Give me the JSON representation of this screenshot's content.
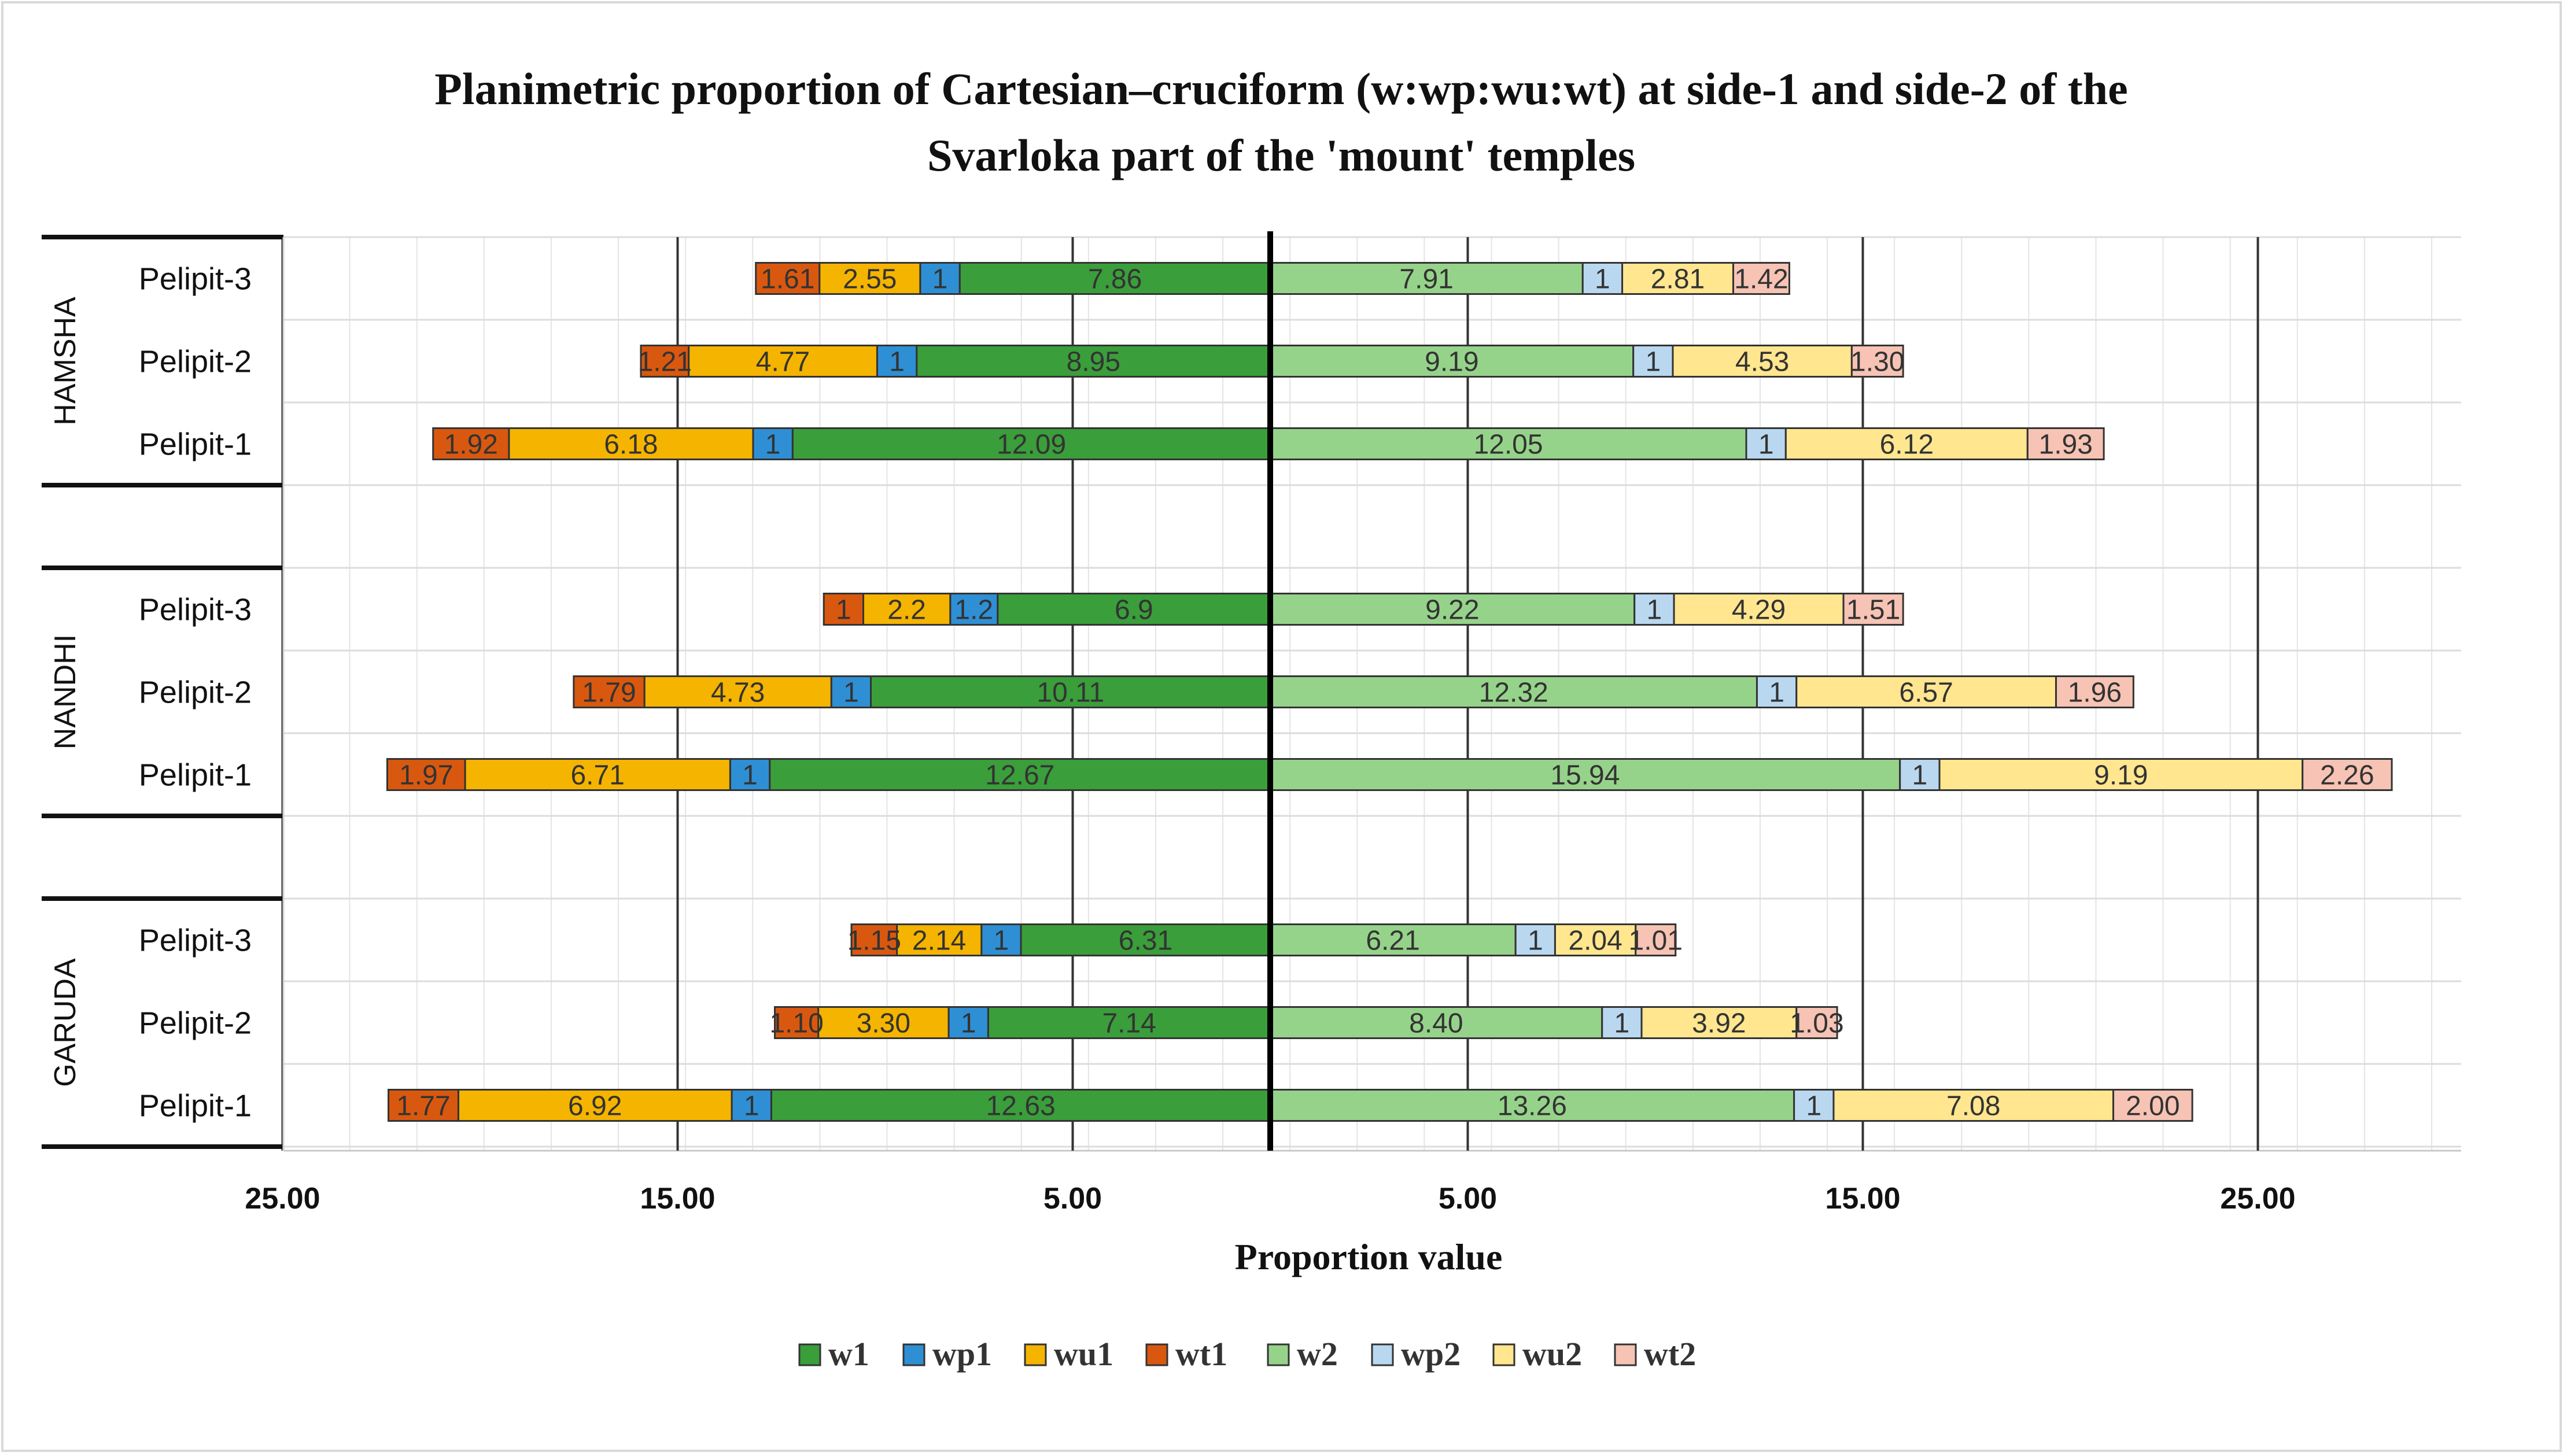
{
  "chart_data": {
    "type": "bar",
    "orientation": "horizontal-diverging",
    "title": "Planimetric proportion of Cartesian–cruciform (w:wp:wu:wt) at side-1 and side-2 of the Svarloka part of the 'mount' temples",
    "title_lines": [
      "Planimetric proportion of Cartesian–cruciform (w:wp:wu:wt) at side-1 and side-2 of the",
      "Svarloka part of the 'mount' temples"
    ],
    "xlabel": "Proportion value",
    "ylabel": "",
    "xlim": [
      -25,
      30
    ],
    "x_ticks": [
      -25,
      -15,
      -5,
      5,
      15,
      25
    ],
    "x_tick_labels": [
      "25.00",
      "15.00",
      "5.00",
      "5.00",
      "15.00",
      "25.00"
    ],
    "legend_position": "bottom-center",
    "groups": [
      {
        "name": "HAMSHA",
        "rows": [
          {
            "label": "Pelipit-3",
            "side1": {
              "w1": 7.86,
              "wp1": 1,
              "wu1": 2.55,
              "wt1": 1.61
            },
            "side2": {
              "w2": 7.91,
              "wp2": 1,
              "wu2": 2.81,
              "wt2": 1.42
            },
            "side1_labels": [
              "7.86",
              "1",
              "2.55",
              "1.61"
            ],
            "side2_labels": [
              "7.91",
              "1",
              "2.81",
              "1.42"
            ]
          },
          {
            "label": "Pelipit-2",
            "side1": {
              "w1": 8.95,
              "wp1": 1,
              "wu1": 4.77,
              "wt1": 1.21
            },
            "side2": {
              "w2": 9.19,
              "wp2": 1,
              "wu2": 4.53,
              "wt2": 1.3
            },
            "side1_labels": [
              "8.95",
              "1",
              "4.77",
              "1.21"
            ],
            "side2_labels": [
              "9.19",
              "1",
              "4.53",
              "1.30"
            ]
          },
          {
            "label": "Pelipit-1",
            "side1": {
              "w1": 12.09,
              "wp1": 1,
              "wu1": 6.18,
              "wt1": 1.92
            },
            "side2": {
              "w2": 12.05,
              "wp2": 1,
              "wu2": 6.12,
              "wt2": 1.93
            },
            "side1_labels": [
              "12.09",
              "1",
              "6.18",
              "1.92"
            ],
            "side2_labels": [
              "12.05",
              "1",
              "6.12",
              "1.93"
            ]
          }
        ]
      },
      {
        "name": "NANDHI",
        "rows": [
          {
            "label": "Pelipit-3",
            "side1": {
              "w1": 6.9,
              "wp1": 1.2,
              "wu1": 2.2,
              "wt1": 1
            },
            "side2": {
              "w2": 9.22,
              "wp2": 1,
              "wu2": 4.29,
              "wt2": 1.51
            },
            "side1_labels": [
              "6.9",
              "1.2",
              "2.2",
              "1"
            ],
            "side2_labels": [
              "9.22",
              "1",
              "4.29",
              "1.51"
            ]
          },
          {
            "label": "Pelipit-2",
            "side1": {
              "w1": 10.11,
              "wp1": 1,
              "wu1": 4.73,
              "wt1": 1.79
            },
            "side2": {
              "w2": 12.32,
              "wp2": 1,
              "wu2": 6.57,
              "wt2": 1.96
            },
            "side1_labels": [
              "10.11",
              "1",
              "4.73",
              "1.79"
            ],
            "side2_labels": [
              "12.32",
              "1",
              "6.57",
              "1.96"
            ]
          },
          {
            "label": "Pelipit-1",
            "side1": {
              "w1": 12.67,
              "wp1": 1,
              "wu1": 6.71,
              "wt1": 1.97
            },
            "side2": {
              "w2": 15.94,
              "wp2": 1,
              "wu2": 9.19,
              "wt2": 2.26
            },
            "side1_labels": [
              "12.67",
              "1",
              "6.71",
              "1.97"
            ],
            "side2_labels": [
              "15.94",
              "1",
              "9.19",
              "2.26"
            ]
          }
        ]
      },
      {
        "name": "GARUDA",
        "rows": [
          {
            "label": "Pelipit-3",
            "side1": {
              "w1": 6.31,
              "wp1": 1,
              "wu1": 2.14,
              "wt1": 1.15
            },
            "side2": {
              "w2": 6.21,
              "wp2": 1,
              "wu2": 2.04,
              "wt2": 1.01
            },
            "side1_labels": [
              "6.31",
              "1",
              "2.14",
              "1.15"
            ],
            "side2_labels": [
              "6.21",
              "1",
              "2.04",
              "1.01"
            ]
          },
          {
            "label": "Pelipit-2",
            "side1": {
              "w1": 7.14,
              "wp1": 1,
              "wu1": 3.3,
              "wt1": 1.1
            },
            "side2": {
              "w2": 8.4,
              "wp2": 1,
              "wu2": 3.92,
              "wt2": 1.03
            },
            "side1_labels": [
              "7.14",
              "1",
              "3.30",
              "1.10"
            ],
            "side2_labels": [
              "8.40",
              "1",
              "3.92",
              "1.03"
            ]
          },
          {
            "label": "Pelipit-1",
            "side1": {
              "w1": 12.63,
              "wp1": 1,
              "wu1": 6.92,
              "wt1": 1.77
            },
            "side2": {
              "w2": 13.26,
              "wp2": 1,
              "wu2": 7.08,
              "wt2": 2.0
            },
            "side1_labels": [
              "12.63",
              "1",
              "6.92",
              "1.77"
            ],
            "side2_labels": [
              "13.26",
              "1",
              "7.08",
              "2.00"
            ]
          }
        ]
      }
    ],
    "series": [
      {
        "name": "w1",
        "color": "#3a9e3a",
        "side": 1
      },
      {
        "name": "wp1",
        "color": "#2f8fd4",
        "side": 1
      },
      {
        "name": "wu1",
        "color": "#f5b400",
        "side": 1
      },
      {
        "name": "wt1",
        "color": "#d9580f",
        "side": 1
      },
      {
        "name": "w2",
        "color": "#96d38a",
        "side": 2
      },
      {
        "name": "wp2",
        "color": "#b9d8f0",
        "side": 2
      },
      {
        "name": "wu2",
        "color": "#ffe68f",
        "side": 2
      },
      {
        "name": "wt2",
        "color": "#f6c3b4",
        "side": 2
      }
    ]
  }
}
